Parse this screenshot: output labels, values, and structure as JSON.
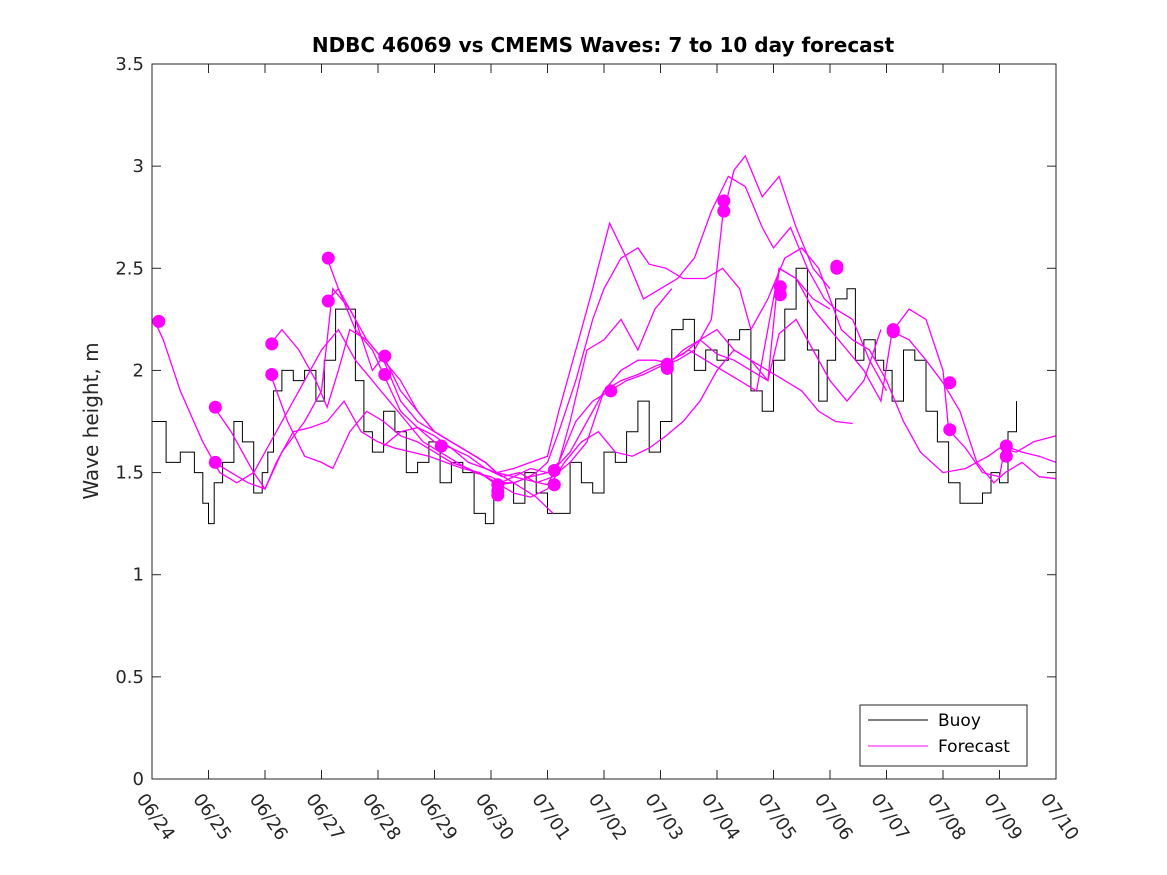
{
  "chart_data": {
    "type": "line",
    "title": "NDBC 46069 vs CMEMS Waves: 7 to 10 day forecast",
    "xlabel": "",
    "ylabel": "Wave height, m",
    "xlim": [
      "06/24",
      "07/10"
    ],
    "ylim": [
      0,
      3.5
    ],
    "x_tick_labels": [
      "06/24",
      "06/25",
      "06/26",
      "06/27",
      "06/28",
      "06/29",
      "06/30",
      "07/01",
      "07/02",
      "07/03",
      "07/04",
      "07/05",
      "07/06",
      "07/07",
      "07/08",
      "07/09",
      "07/10"
    ],
    "y_tick_labels": [
      "0",
      "0.5",
      "1",
      "1.5",
      "2",
      "2.5",
      "3",
      "3.5"
    ],
    "y_ticks": [
      0,
      0.5,
      1,
      1.5,
      2,
      2.5,
      3,
      3.5
    ],
    "legend": {
      "position": "bottom-right",
      "entries": [
        {
          "name": "Buoy",
          "color": "#000000"
        },
        {
          "name": "Forecast",
          "color": "#ff00ff"
        }
      ]
    },
    "x_unit_note": "days from 06/24",
    "buoy": {
      "name": "Buoy",
      "color": "#000000",
      "x": [
        0.0,
        0.25,
        0.5,
        0.75,
        0.9,
        1.0,
        1.1,
        1.25,
        1.45,
        1.6,
        1.8,
        1.95,
        2.05,
        2.15,
        2.3,
        2.5,
        2.7,
        2.9,
        3.05,
        3.25,
        3.4,
        3.6,
        3.75,
        3.9,
        4.1,
        4.3,
        4.5,
        4.7,
        4.9,
        5.1,
        5.3,
        5.5,
        5.7,
        5.9,
        6.05,
        6.2,
        6.4,
        6.6,
        6.8,
        7.0,
        7.2,
        7.4,
        7.6,
        7.8,
        8.0,
        8.2,
        8.4,
        8.6,
        8.8,
        9.0,
        9.2,
        9.4,
        9.6,
        9.8,
        10.0,
        10.2,
        10.4,
        10.6,
        10.8,
        11.0,
        11.2,
        11.4,
        11.6,
        11.8,
        11.95,
        12.1,
        12.3,
        12.45,
        12.6,
        12.8,
        12.95,
        13.1,
        13.3,
        13.5,
        13.7,
        13.9,
        14.1,
        14.3,
        14.5,
        14.7,
        14.85,
        15.0,
        15.15,
        15.3
      ],
      "y": [
        1.75,
        1.55,
        1.6,
        1.5,
        1.35,
        1.25,
        1.45,
        1.55,
        1.75,
        1.65,
        1.4,
        1.5,
        1.6,
        1.9,
        2.0,
        1.95,
        2.0,
        1.85,
        2.05,
        2.3,
        2.3,
        1.95,
        1.7,
        1.6,
        1.8,
        1.7,
        1.5,
        1.55,
        1.65,
        1.45,
        1.55,
        1.5,
        1.3,
        1.25,
        1.4,
        1.45,
        1.35,
        1.5,
        1.4,
        1.3,
        1.3,
        1.55,
        1.45,
        1.4,
        1.6,
        1.55,
        1.7,
        1.85,
        1.6,
        1.75,
        2.2,
        2.25,
        2.0,
        2.1,
        2.05,
        2.15,
        2.2,
        1.9,
        1.8,
        2.05,
        2.3,
        2.5,
        2.1,
        1.85,
        2.05,
        2.35,
        2.4,
        2.05,
        2.15,
        2.05,
        2.0,
        1.85,
        2.1,
        2.05,
        1.8,
        1.65,
        1.45,
        1.35,
        1.35,
        1.4,
        1.5,
        1.45,
        1.7,
        1.85
      ]
    },
    "series": [
      {
        "name": "Forecast",
        "color": "#ff00ff",
        "x": [
          0.05,
          0.2,
          0.5,
          0.9,
          1.2,
          1.5,
          1.8,
          2.1,
          2.4,
          2.8,
          3.0,
          3.3,
          3.6,
          3.9,
          4.2,
          4.5,
          4.8,
          5.1,
          5.4,
          5.7,
          6.0,
          6.2,
          6.4,
          6.6,
          6.8,
          7.0,
          7.2,
          7.5,
          7.8,
          8.0,
          8.3,
          8.6,
          8.8,
          9.1,
          9.4,
          9.8,
          10.1,
          10.4,
          10.6,
          10.9,
          11.2,
          11.5,
          11.8,
          12.0,
          12.2,
          12.4,
          12.7,
          13.0,
          13.3,
          13.6,
          14.0,
          14.4,
          14.8,
          15.0,
          15.3,
          15.6,
          16.0
        ],
        "y": [
          2.24,
          2.15,
          1.9,
          1.65,
          1.5,
          1.45,
          1.5,
          1.65,
          1.8,
          2.0,
          2.1,
          2.2,
          2.05,
          1.95,
          1.85,
          1.75,
          1.65,
          1.6,
          1.55,
          1.5,
          1.48,
          1.45,
          1.45,
          1.47,
          1.5,
          1.55,
          1.7,
          1.95,
          2.25,
          2.4,
          2.55,
          2.6,
          2.52,
          2.5,
          2.45,
          2.45,
          2.5,
          2.4,
          2.2,
          2.35,
          2.55,
          2.6,
          2.5,
          2.35,
          2.2,
          2.15,
          2.1,
          1.95,
          1.75,
          1.6,
          1.5,
          1.52,
          1.58,
          1.62,
          1.6,
          1.65,
          1.68
        ]
      },
      {
        "name": "",
        "color": "#ff00ff",
        "x": [
          1.1,
          1.4,
          1.8,
          2.0,
          2.3,
          2.7,
          3.0,
          3.2,
          3.5,
          3.8,
          4.1,
          4.4,
          4.7,
          5.0,
          5.3,
          5.6,
          5.9,
          6.1,
          6.4,
          6.8,
          7.1
        ],
        "y": [
          1.82,
          1.7,
          1.5,
          1.42,
          1.6,
          1.75,
          1.9,
          2.4,
          2.3,
          2.15,
          2.05,
          1.85,
          1.75,
          1.7,
          1.65,
          1.6,
          1.55,
          1.5,
          1.45,
          1.38,
          1.3
        ]
      },
      {
        "name": "",
        "color": "#ff00ff",
        "x": [
          1.1,
          1.4,
          1.7,
          2.0,
          2.2,
          2.5,
          2.8,
          3.1,
          3.4,
          3.7,
          4.0,
          4.3,
          4.6,
          4.9,
          5.2,
          5.5,
          5.8,
          6.1,
          6.4,
          6.7,
          7.0,
          7.3,
          7.6,
          7.9,
          8.2,
          8.5,
          8.8,
          9.1,
          9.4,
          9.7,
          10.0,
          10.3,
          10.6,
          10.9,
          11.2,
          11.5,
          11.8,
          12.1,
          12.4
        ],
        "y": [
          1.55,
          1.5,
          1.45,
          1.42,
          1.55,
          1.7,
          1.72,
          1.75,
          1.85,
          1.7,
          1.65,
          1.62,
          1.6,
          1.58,
          1.55,
          1.52,
          1.5,
          1.45,
          1.4,
          1.38,
          1.42,
          1.55,
          1.65,
          1.7,
          1.6,
          1.58,
          1.62,
          1.68,
          1.75,
          1.85,
          2.0,
          2.1,
          2.05,
          2.0,
          1.95,
          1.9,
          1.8,
          1.75,
          1.74
        ]
      },
      {
        "name": "",
        "color": "#ff00ff",
        "x": [
          2.1,
          2.3,
          2.6,
          2.9,
          3.1,
          3.3,
          3.5,
          3.8,
          4.1,
          4.4,
          4.7,
          5.0,
          5.3,
          5.6,
          5.9,
          6.1
        ],
        "y": [
          2.13,
          2.2,
          2.1,
          1.95,
          1.82,
          2.0,
          2.2,
          2.15,
          2.05,
          1.95,
          1.8,
          1.7,
          1.65,
          1.6,
          1.55,
          1.5
        ]
      },
      {
        "name": "",
        "color": "#ff00ff",
        "x": [
          2.1,
          2.4,
          2.7,
          3.0,
          3.2,
          3.5,
          3.8,
          4.1,
          4.4,
          4.7,
          5.0,
          5.3,
          5.6,
          5.9,
          6.1,
          6.4,
          6.7,
          7.0,
          7.2,
          7.4,
          7.7,
          8.0,
          8.3,
          8.6,
          8.9,
          9.2
        ],
        "y": [
          1.98,
          1.75,
          1.58,
          1.55,
          1.52,
          1.7,
          1.8,
          1.75,
          1.68,
          1.65,
          1.6,
          1.55,
          1.52,
          1.48,
          1.44,
          1.45,
          1.48,
          1.5,
          1.55,
          1.75,
          2.1,
          2.15,
          2.25,
          2.1,
          2.3,
          2.4
        ]
      },
      {
        "name": "",
        "color": "#ff00ff",
        "x": [
          3.1,
          3.3,
          3.6,
          3.9,
          4.1,
          4.4,
          4.7,
          5.0,
          5.3,
          5.6,
          5.9,
          6.1,
          6.4,
          6.7,
          7.0,
          7.2,
          7.5,
          7.8,
          8.1,
          8.4,
          8.7,
          9.0,
          9.3,
          9.6,
          9.9,
          10.2,
          10.5,
          10.8,
          11.0,
          11.3,
          11.6,
          11.9,
          12.1,
          12.4,
          12.7,
          13.0
        ],
        "y": [
          2.55,
          2.4,
          2.25,
          2.0,
          2.07,
          1.9,
          1.8,
          1.7,
          1.65,
          1.6,
          1.55,
          1.5,
          1.52,
          1.55,
          1.58,
          1.8,
          2.1,
          2.4,
          2.72,
          2.55,
          2.35,
          2.4,
          2.45,
          2.55,
          2.78,
          2.95,
          2.9,
          2.7,
          2.6,
          2.7,
          2.5,
          2.35,
          2.3,
          2.25,
          2.05,
          1.9
        ]
      },
      {
        "name": "",
        "color": "#ff00ff",
        "x": [
          3.1,
          3.3,
          3.6,
          3.9,
          4.1,
          4.4,
          4.7,
          5.0,
          5.3,
          5.6,
          5.9,
          6.1,
          6.4,
          6.7,
          7.0,
          7.2,
          7.5,
          7.8,
          8.1,
          8.4,
          8.7,
          9.0,
          9.3,
          9.6,
          9.9,
          10.1,
          10.3,
          10.5,
          10.8,
          11.1,
          11.4,
          11.7,
          12.0
        ],
        "y": [
          2.34,
          2.4,
          2.2,
          2.1,
          1.98,
          1.8,
          1.72,
          1.65,
          1.62,
          1.55,
          1.52,
          1.5,
          1.48,
          1.46,
          1.44,
          1.55,
          1.75,
          1.85,
          1.9,
          1.95,
          1.98,
          2.02,
          2.05,
          2.1,
          2.25,
          2.75,
          2.98,
          3.05,
          2.85,
          2.95,
          2.7,
          2.5,
          2.4
        ]
      },
      {
        "name": "",
        "color": "#ff00ff",
        "x": [
          4.1,
          4.4,
          4.7,
          5.0,
          5.3,
          5.6,
          5.9,
          6.2,
          6.5,
          6.8,
          7.1,
          7.4,
          7.7,
          8.0,
          8.3,
          8.6,
          8.9,
          9.1,
          9.4,
          9.7,
          10.0,
          10.3,
          10.6,
          10.9,
          11.1,
          11.4,
          11.7,
          12.0,
          12.3,
          12.6,
          12.9
        ],
        "y": [
          1.63,
          1.7,
          1.72,
          1.68,
          1.62,
          1.58,
          1.52,
          1.48,
          1.5,
          1.45,
          1.48,
          1.55,
          1.65,
          1.9,
          2.0,
          2.05,
          2.05,
          2.04,
          2.08,
          2.15,
          2.2,
          2.1,
          2.05,
          1.95,
          2.18,
          2.25,
          2.1,
          1.95,
          1.85,
          1.95,
          2.2
        ]
      },
      {
        "name": "",
        "color": "#ff00ff",
        "x": [
          6.1,
          6.4,
          6.7,
          7.0,
          7.1,
          7.4,
          7.7,
          8.0,
          8.3,
          8.6,
          8.9,
          9.2,
          9.5,
          9.8,
          10.1,
          10.4,
          10.7,
          11.1,
          11.4,
          11.7,
          12.0
        ],
        "y": [
          1.44,
          1.48,
          1.52,
          1.5,
          1.51,
          1.6,
          1.75,
          1.9,
          1.95,
          1.98,
          2.02,
          2.05,
          2.1,
          2.05,
          2.0,
          1.95,
          1.9,
          2.5,
          2.45,
          2.35,
          2.3
        ]
      },
      {
        "name": "",
        "color": "#ff00ff",
        "x": [
          9.1,
          9.4,
          9.7,
          10.0,
          10.3,
          10.6,
          10.9,
          11.1,
          11.4,
          11.7,
          12.0,
          12.3,
          12.6,
          12.9,
          13.1,
          13.4,
          13.7,
          14.0,
          14.3,
          14.6,
          14.9,
          15.1,
          15.4,
          15.7,
          16.0
        ],
        "y": [
          2.02,
          2.1,
          2.15,
          2.08,
          2.05,
          2.0,
          1.95,
          2.5,
          2.45,
          2.3,
          2.2,
          2.1,
          2.0,
          1.85,
          2.19,
          2.15,
          2.05,
          1.94,
          1.8,
          1.55,
          1.45,
          1.5,
          1.55,
          1.48,
          1.47
        ]
      },
      {
        "name": "",
        "color": "#ff00ff",
        "x": [
          13.1,
          13.4,
          13.7,
          14.0,
          14.1,
          14.4,
          14.7,
          15.0,
          15.1,
          15.4,
          15.7,
          16.0
        ],
        "y": [
          2.19,
          2.3,
          2.25,
          2.0,
          1.71,
          1.62,
          1.5,
          1.48,
          1.63,
          1.6,
          1.58,
          1.55
        ]
      }
    ],
    "markers": {
      "color": "#ff00ff",
      "points": [
        {
          "x": 0.12,
          "y": 2.24
        },
        {
          "x": 1.12,
          "y": 1.82
        },
        {
          "x": 1.12,
          "y": 1.55
        },
        {
          "x": 2.12,
          "y": 2.13
        },
        {
          "x": 2.12,
          "y": 1.98
        },
        {
          "x": 3.12,
          "y": 2.55
        },
        {
          "x": 3.12,
          "y": 2.34
        },
        {
          "x": 4.12,
          "y": 2.07
        },
        {
          "x": 4.12,
          "y": 1.98
        },
        {
          "x": 5.12,
          "y": 1.63
        },
        {
          "x": 6.12,
          "y": 1.44
        },
        {
          "x": 6.12,
          "y": 1.41
        },
        {
          "x": 6.12,
          "y": 1.39
        },
        {
          "x": 7.12,
          "y": 1.51
        },
        {
          "x": 7.12,
          "y": 1.44
        },
        {
          "x": 8.12,
          "y": 1.9
        },
        {
          "x": 9.12,
          "y": 2.03
        },
        {
          "x": 9.12,
          "y": 2.01
        },
        {
          "x": 10.12,
          "y": 2.83
        },
        {
          "x": 10.12,
          "y": 2.78
        },
        {
          "x": 11.12,
          "y": 2.41
        },
        {
          "x": 11.12,
          "y": 2.37
        },
        {
          "x": 12.12,
          "y": 2.51
        },
        {
          "x": 12.12,
          "y": 2.5
        },
        {
          "x": 13.12,
          "y": 2.2
        },
        {
          "x": 13.12,
          "y": 2.19
        },
        {
          "x": 14.12,
          "y": 1.94
        },
        {
          "x": 14.12,
          "y": 1.71
        },
        {
          "x": 15.12,
          "y": 1.63
        },
        {
          "x": 15.12,
          "y": 1.58
        }
      ]
    }
  }
}
